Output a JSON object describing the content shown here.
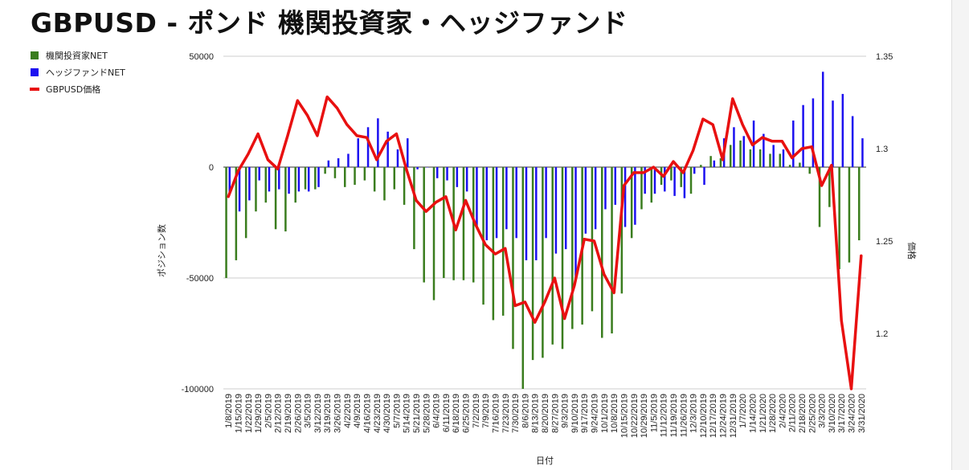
{
  "title": "GBPUSD - ポンド 機関投資家・ヘッジファンド",
  "chart_data": {
    "type": "bar",
    "x_label": "日付",
    "y_label_left": "ポジション数",
    "y_label_right": "価格",
    "y_left_range": [
      -100000,
      50000
    ],
    "y_left_ticks": [
      50000,
      0,
      -50000,
      -100000
    ],
    "y_right_range": [
      1.17,
      1.35
    ],
    "y_right_ticks": [
      1.35,
      1.3,
      1.25,
      1.2
    ],
    "grid": "horizontal",
    "legend_position": "top-left",
    "x": [
      "1/8/2019",
      "1/15/2019",
      "1/22/2019",
      "1/29/2019",
      "2/5/2019",
      "2/12/2019",
      "2/19/2019",
      "2/26/2019",
      "3/5/2019",
      "3/12/2019",
      "3/19/2019",
      "3/26/2019",
      "4/2/2019",
      "4/9/2019",
      "4/16/2019",
      "4/23/2019",
      "4/30/2019",
      "5/7/2019",
      "5/14/2019",
      "5/21/2019",
      "5/28/2019",
      "6/4/2019",
      "6/11/2019",
      "6/18/2019",
      "6/25/2019",
      "7/2/2019",
      "7/9/2019",
      "7/16/2019",
      "7/23/2019",
      "7/30/2019",
      "8/6/2019",
      "8/13/2019",
      "8/20/2019",
      "8/27/2019",
      "9/3/2019",
      "9/10/2019",
      "9/17/2019",
      "9/24/2019",
      "10/1/2019",
      "10/8/2019",
      "10/15/2019",
      "10/22/2019",
      "10/29/2019",
      "11/5/2019",
      "11/12/2019",
      "11/19/2019",
      "11/26/2019",
      "12/3/2019",
      "12/10/2019",
      "12/17/2019",
      "12/24/2019",
      "12/31/2019",
      "1/7/2020",
      "1/14/2020",
      "1/21/2020",
      "1/28/2020",
      "2/4/2020",
      "2/11/2020",
      "2/18/2020",
      "2/25/2020",
      "3/3/2020",
      "3/10/2020",
      "3/17/2020",
      "3/24/2020",
      "3/31/2020"
    ],
    "series": [
      {
        "name": "機関投資家NET",
        "type": "bar",
        "axis": "left",
        "color": "#3a7d1e",
        "values": [
          -50000,
          -42000,
          -32000,
          -20000,
          -16000,
          -28000,
          -29000,
          -16000,
          -10000,
          -10000,
          -3000,
          -5000,
          -9000,
          -8000,
          -6000,
          -11000,
          -15000,
          -10000,
          -17000,
          -37000,
          -52000,
          -60000,
          -50000,
          -51000,
          -51000,
          -52000,
          -62000,
          -69000,
          -67000,
          -82000,
          -100000,
          -87000,
          -86000,
          -80000,
          -82000,
          -73000,
          -71000,
          -65000,
          -77000,
          -75000,
          -57000,
          -32000,
          -19000,
          -16000,
          -8000,
          -6000,
          -9000,
          -12000,
          1000,
          5000,
          4000,
          10000,
          12000,
          8000,
          8000,
          6000,
          6000,
          1000,
          2000,
          -3000,
          -27000,
          -18000,
          -46000,
          -43000,
          -33000
        ]
      },
      {
        "name": "ヘッジファンドNET",
        "type": "bar",
        "axis": "left",
        "color": "#1c10f0",
        "values": [
          -12000,
          -20000,
          -15000,
          -6000,
          -11000,
          -10000,
          -12000,
          -11000,
          -11000,
          -9000,
          3000,
          4000,
          6000,
          13000,
          18000,
          22000,
          16000,
          8000,
          13000,
          -1000,
          0,
          -5000,
          -6000,
          -9000,
          -11000,
          -27000,
          -33000,
          -32000,
          -28000,
          -32000,
          -42000,
          -42000,
          -32000,
          -39000,
          -37000,
          -51000,
          -30000,
          -28000,
          -19000,
          -17000,
          -27000,
          -26000,
          -12000,
          -12000,
          -11000,
          -13000,
          -14000,
          -3000,
          -8000,
          3000,
          13000,
          18000,
          14000,
          21000,
          15000,
          10000,
          8000,
          21000,
          28000,
          31000,
          43000,
          30000,
          33000,
          23000,
          13000
        ]
      },
      {
        "name": "GBPUSD価格",
        "type": "line",
        "axis": "right",
        "color": "#e81010",
        "values": [
          1.274,
          1.288,
          1.297,
          1.308,
          1.294,
          1.289,
          1.307,
          1.326,
          1.318,
          1.307,
          1.328,
          1.322,
          1.313,
          1.307,
          1.306,
          1.294,
          1.304,
          1.308,
          1.289,
          1.272,
          1.266,
          1.271,
          1.274,
          1.256,
          1.272,
          1.259,
          1.248,
          1.243,
          1.246,
          1.215,
          1.217,
          1.206,
          1.217,
          1.23,
          1.208,
          1.226,
          1.251,
          1.25,
          1.232,
          1.222,
          1.28,
          1.287,
          1.287,
          1.29,
          1.285,
          1.293,
          1.287,
          1.299,
          1.316,
          1.313,
          1.294,
          1.327,
          1.313,
          1.302,
          1.306,
          1.304,
          1.304,
          1.295,
          1.3,
          1.301,
          1.28,
          1.291,
          1.207,
          1.17,
          1.242
        ]
      }
    ]
  }
}
